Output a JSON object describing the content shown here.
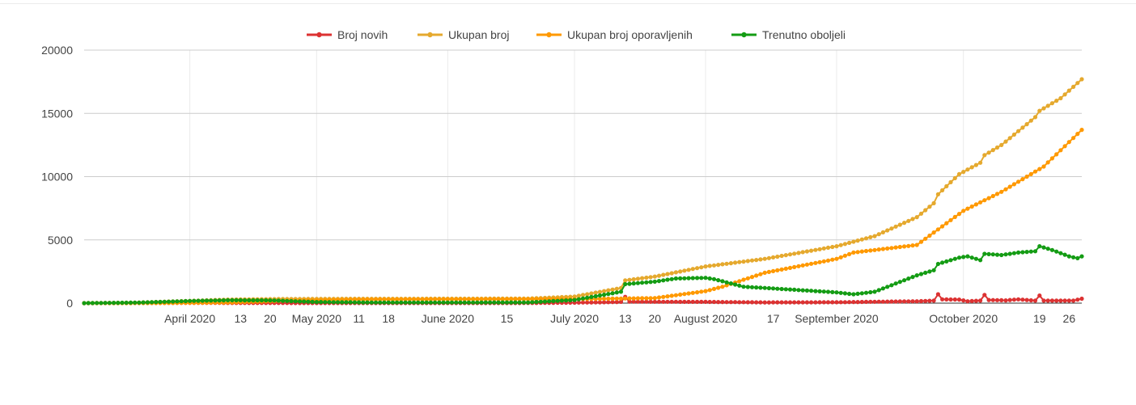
{
  "chart_data": {
    "type": "line",
    "title": "",
    "xlabel": "",
    "ylabel": "",
    "x_range": [
      "2020-03-07",
      "2020-10-29"
    ],
    "ylim": [
      0,
      20000
    ],
    "y_ticks": [
      0,
      5000,
      10000,
      15000,
      20000
    ],
    "y_tick_labels": [
      "0",
      "5000",
      "10000",
      "15000",
      "20000"
    ],
    "x_ticks": [
      {
        "date": "2020-04-01",
        "label": "April 2020"
      },
      {
        "date": "2020-04-13",
        "label": "13"
      },
      {
        "date": "2020-04-20",
        "label": "20"
      },
      {
        "date": "2020-05-01",
        "label": "May 2020"
      },
      {
        "date": "2020-05-11",
        "label": "11"
      },
      {
        "date": "2020-05-18",
        "label": "18"
      },
      {
        "date": "2020-06-01",
        "label": "June 2020"
      },
      {
        "date": "2020-06-15",
        "label": "15"
      },
      {
        "date": "2020-07-01",
        "label": "July 2020"
      },
      {
        "date": "2020-07-13",
        "label": "13"
      },
      {
        "date": "2020-07-20",
        "label": "20"
      },
      {
        "date": "2020-08-01",
        "label": "August 2020"
      },
      {
        "date": "2020-08-17",
        "label": "17"
      },
      {
        "date": "2020-09-01",
        "label": "September 2020"
      },
      {
        "date": "2020-10-01",
        "label": "October 2020"
      },
      {
        "date": "2020-10-19",
        "label": "19"
      },
      {
        "date": "2020-10-26",
        "label": "26"
      }
    ],
    "vertical_grid_dates": [
      "2020-04-01",
      "2020-05-01",
      "2020-06-01",
      "2020-07-01",
      "2020-08-01",
      "2020-09-01",
      "2020-10-01"
    ],
    "grid": true,
    "legend_position": "top",
    "series": [
      {
        "name": "Broj novih",
        "color": "#dc3232",
        "points": [
          [
            "2020-03-07",
            0
          ],
          [
            "2020-03-20",
            15
          ],
          [
            "2020-04-01",
            20
          ],
          [
            "2020-04-15",
            12
          ],
          [
            "2020-05-01",
            8
          ],
          [
            "2020-06-01",
            5
          ],
          [
            "2020-06-20",
            10
          ],
          [
            "2020-07-01",
            40
          ],
          [
            "2020-07-10",
            80
          ],
          [
            "2020-07-12",
            100
          ],
          [
            "2020-07-13",
            500
          ],
          [
            "2020-07-14",
            120
          ],
          [
            "2020-07-20",
            110
          ],
          [
            "2020-08-01",
            100
          ],
          [
            "2020-08-15",
            60
          ],
          [
            "2020-09-01",
            70
          ],
          [
            "2020-09-10",
            110
          ],
          [
            "2020-09-20",
            150
          ],
          [
            "2020-09-24",
            200
          ],
          [
            "2020-09-25",
            700
          ],
          [
            "2020-09-26",
            300
          ],
          [
            "2020-09-30",
            280
          ],
          [
            "2020-10-02",
            150
          ],
          [
            "2020-10-05",
            200
          ],
          [
            "2020-10-06",
            650
          ],
          [
            "2020-10-07",
            250
          ],
          [
            "2020-10-11",
            220
          ],
          [
            "2020-10-14",
            300
          ],
          [
            "2020-10-18",
            200
          ],
          [
            "2020-10-19",
            600
          ],
          [
            "2020-10-20",
            200
          ],
          [
            "2020-10-24",
            200
          ],
          [
            "2020-10-27",
            200
          ],
          [
            "2020-10-29",
            350
          ]
        ]
      },
      {
        "name": "Ukupan broj",
        "color": "#e5a92e",
        "points": [
          [
            "2020-03-07",
            0
          ],
          [
            "2020-03-20",
            50
          ],
          [
            "2020-04-01",
            180
          ],
          [
            "2020-04-10",
            280
          ],
          [
            "2020-04-20",
            320
          ],
          [
            "2020-05-01",
            340
          ],
          [
            "2020-06-01",
            350
          ],
          [
            "2020-06-20",
            360
          ],
          [
            "2020-07-01",
            520
          ],
          [
            "2020-07-12",
            1200
          ],
          [
            "2020-07-13",
            1800
          ],
          [
            "2020-07-20",
            2100
          ],
          [
            "2020-08-01",
            2900
          ],
          [
            "2020-08-15",
            3500
          ],
          [
            "2020-09-01",
            4500
          ],
          [
            "2020-09-10",
            5300
          ],
          [
            "2020-09-20",
            6800
          ],
          [
            "2020-09-24",
            7900
          ],
          [
            "2020-09-25",
            8600
          ],
          [
            "2020-09-30",
            10200
          ],
          [
            "2020-10-05",
            11100
          ],
          [
            "2020-10-06",
            11700
          ],
          [
            "2020-10-10",
            12500
          ],
          [
            "2020-10-18",
            14700
          ],
          [
            "2020-10-19",
            15200
          ],
          [
            "2020-10-24",
            16200
          ],
          [
            "2020-10-29",
            17700
          ]
        ]
      },
      {
        "name": "Ukupan broj oporavljenih",
        "color": "#ff9900",
        "points": [
          [
            "2020-03-07",
            0
          ],
          [
            "2020-03-25",
            5
          ],
          [
            "2020-04-10",
            50
          ],
          [
            "2020-04-25",
            200
          ],
          [
            "2020-05-10",
            280
          ],
          [
            "2020-06-01",
            300
          ],
          [
            "2020-07-01",
            320
          ],
          [
            "2020-07-20",
            400
          ],
          [
            "2020-08-01",
            950
          ],
          [
            "2020-08-05",
            1300
          ],
          [
            "2020-08-15",
            2400
          ],
          [
            "2020-09-01",
            3500
          ],
          [
            "2020-09-05",
            4000
          ],
          [
            "2020-09-20",
            4600
          ],
          [
            "2020-10-01",
            7300
          ],
          [
            "2020-10-10",
            8800
          ],
          [
            "2020-10-20",
            10800
          ],
          [
            "2020-10-29",
            13700
          ]
        ]
      },
      {
        "name": "Trenutno oboljeli",
        "color": "#149c14",
        "points": [
          [
            "2020-03-07",
            0
          ],
          [
            "2020-03-20",
            45
          ],
          [
            "2020-04-01",
            170
          ],
          [
            "2020-04-10",
            230
          ],
          [
            "2020-04-20",
            220
          ],
          [
            "2020-05-01",
            90
          ],
          [
            "2020-05-15",
            50
          ],
          [
            "2020-06-01",
            50
          ],
          [
            "2020-06-20",
            60
          ],
          [
            "2020-07-01",
            250
          ],
          [
            "2020-07-12",
            900
          ],
          [
            "2020-07-13",
            1500
          ],
          [
            "2020-07-20",
            1700
          ],
          [
            "2020-07-25",
            1950
          ],
          [
            "2020-08-01",
            2000
          ],
          [
            "2020-08-03",
            1900
          ],
          [
            "2020-08-10",
            1300
          ],
          [
            "2020-08-20",
            1100
          ],
          [
            "2020-09-01",
            850
          ],
          [
            "2020-09-05",
            700
          ],
          [
            "2020-09-10",
            900
          ],
          [
            "2020-09-20",
            2200
          ],
          [
            "2020-09-24",
            2600
          ],
          [
            "2020-09-25",
            3100
          ],
          [
            "2020-09-30",
            3600
          ],
          [
            "2020-10-02",
            3700
          ],
          [
            "2020-10-05",
            3400
          ],
          [
            "2020-10-06",
            3900
          ],
          [
            "2020-10-10",
            3800
          ],
          [
            "2020-10-14",
            4000
          ],
          [
            "2020-10-18",
            4100
          ],
          [
            "2020-10-19",
            4500
          ],
          [
            "2020-10-22",
            4200
          ],
          [
            "2020-10-26",
            3700
          ],
          [
            "2020-10-28",
            3550
          ],
          [
            "2020-10-29",
            3700
          ]
        ]
      }
    ]
  }
}
